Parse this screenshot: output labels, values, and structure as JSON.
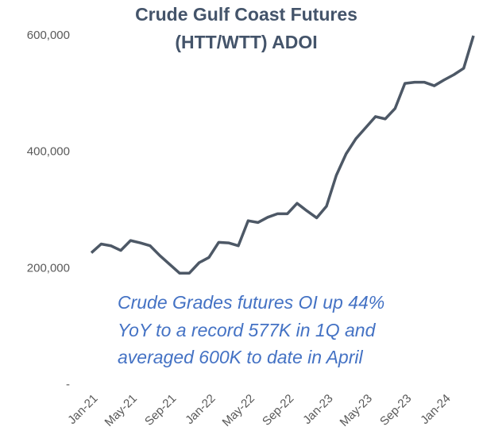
{
  "chart_data": {
    "type": "line",
    "title_lines": [
      "Crude Gulf Coast Futures",
      "(HTT/WTT) ADOI"
    ],
    "annotation_lines": [
      "Crude Grades futures OI up 44%",
      "YoY to a record 577K in 1Q and",
      "averaged 600K to date in April"
    ],
    "categories": [
      "Jan-21",
      null,
      null,
      null,
      "May-21",
      null,
      null,
      null,
      "Sep-21",
      null,
      null,
      null,
      "Jan-22",
      null,
      null,
      null,
      "May-22",
      null,
      null,
      null,
      "Sep-22",
      null,
      null,
      null,
      "Jan-23",
      null,
      null,
      null,
      "May-23",
      null,
      null,
      null,
      "Sep-23",
      null,
      null,
      null,
      "Jan-24",
      null,
      null,
      null
    ],
    "series": [
      {
        "name": "ADOI",
        "color": "#4d5866",
        "values": [
          227000,
          242000,
          239000,
          231000,
          248000,
          244000,
          239000,
          222000,
          207000,
          192000,
          192000,
          210000,
          219000,
          245000,
          244000,
          239000,
          282000,
          279000,
          288000,
          294000,
          294000,
          312000,
          299000,
          287000,
          307000,
          360000,
          397000,
          423000,
          442000,
          461000,
          457000,
          475000,
          518000,
          520000,
          520000,
          514000,
          524000,
          533000,
          544000,
          600000
        ]
      }
    ],
    "ylim": [
      0,
      600000
    ],
    "yticks": [
      {
        "value": 0,
        "label": "-"
      },
      {
        "value": 200000,
        "label": "200,000"
      },
      {
        "value": 400000,
        "label": "400,000"
      },
      {
        "value": 600000,
        "label": "600,000"
      }
    ],
    "grid": false
  }
}
